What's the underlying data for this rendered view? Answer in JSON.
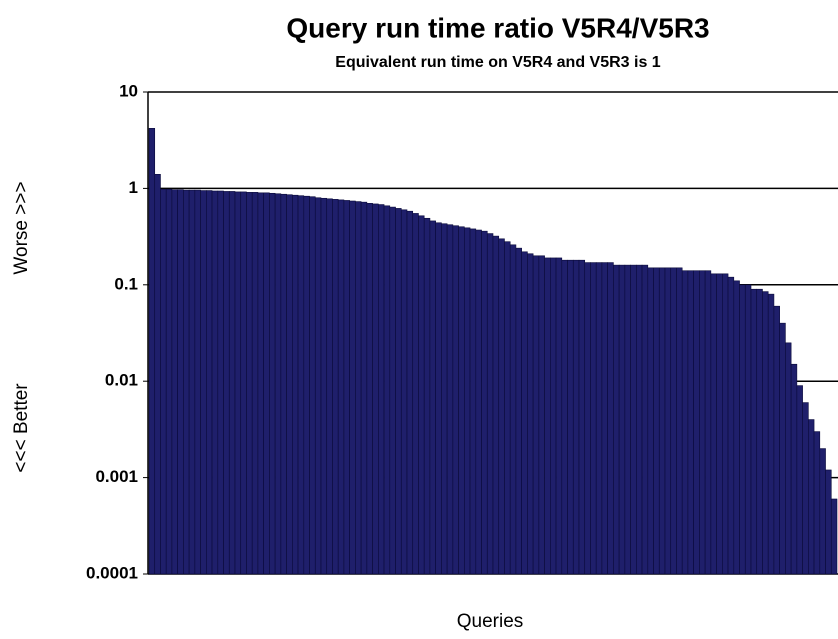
{
  "chart_data": {
    "type": "bar",
    "title": "Query run time ratio V5R4/V5R3",
    "subtitle": "Equivalent run time on V5R4 and V5R3 is 1",
    "ylabel_upper": "Worse >>>",
    "ylabel_lower": "<<< Better",
    "xlabel": "Queries",
    "log_y": true,
    "grid": true,
    "color": "#1f1f6b",
    "ylim": [
      0.0001,
      10
    ],
    "yticks": [
      0.0001,
      0.001,
      0.01,
      0.1,
      1,
      10
    ],
    "categories": [
      null,
      null,
      null,
      null,
      null,
      null,
      null,
      null,
      null,
      null,
      null,
      null,
      null,
      null,
      null,
      null,
      null,
      null,
      null,
      null,
      null,
      null,
      null,
      null,
      null,
      null,
      null,
      null,
      null,
      null,
      null,
      null,
      null,
      null,
      null,
      null,
      null,
      null,
      null,
      null,
      null,
      null,
      null,
      null,
      null,
      null,
      null,
      null,
      null,
      null,
      null,
      null,
      null,
      null,
      null,
      null,
      null,
      null,
      null,
      null,
      null,
      null,
      null,
      null,
      null,
      null,
      null,
      null,
      null,
      null,
      null,
      null,
      null,
      null,
      null,
      null,
      null,
      null,
      null,
      null,
      null,
      null,
      null,
      null,
      null,
      null,
      null,
      null,
      null,
      null,
      null,
      null,
      null,
      null,
      null,
      null,
      null,
      null,
      null,
      null,
      null,
      null,
      null,
      null,
      null,
      null,
      null,
      null,
      null,
      null,
      null,
      null,
      null,
      null,
      null,
      null,
      null,
      null,
      null,
      null
    ],
    "values": [
      4.2,
      1.4,
      0.98,
      0.98,
      0.97,
      0.97,
      0.96,
      0.96,
      0.96,
      0.95,
      0.95,
      0.94,
      0.94,
      0.93,
      0.93,
      0.92,
      0.92,
      0.91,
      0.91,
      0.9,
      0.9,
      0.89,
      0.88,
      0.87,
      0.86,
      0.85,
      0.84,
      0.83,
      0.82,
      0.8,
      0.79,
      0.78,
      0.77,
      0.76,
      0.75,
      0.74,
      0.73,
      0.72,
      0.7,
      0.69,
      0.68,
      0.66,
      0.64,
      0.62,
      0.6,
      0.58,
      0.55,
      0.52,
      0.49,
      0.46,
      0.44,
      0.43,
      0.42,
      0.41,
      0.4,
      0.39,
      0.38,
      0.37,
      0.36,
      0.34,
      0.32,
      0.3,
      0.28,
      0.26,
      0.24,
      0.22,
      0.21,
      0.2,
      0.2,
      0.19,
      0.19,
      0.19,
      0.18,
      0.18,
      0.18,
      0.18,
      0.17,
      0.17,
      0.17,
      0.17,
      0.17,
      0.16,
      0.16,
      0.16,
      0.16,
      0.16,
      0.16,
      0.15,
      0.15,
      0.15,
      0.15,
      0.15,
      0.15,
      0.14,
      0.14,
      0.14,
      0.14,
      0.14,
      0.13,
      0.13,
      0.13,
      0.12,
      0.11,
      0.1,
      0.1,
      0.09,
      0.09,
      0.085,
      0.08,
      0.06,
      0.04,
      0.025,
      0.015,
      0.009,
      0.006,
      0.004,
      0.003,
      0.002,
      0.0012,
      0.0006
    ]
  }
}
